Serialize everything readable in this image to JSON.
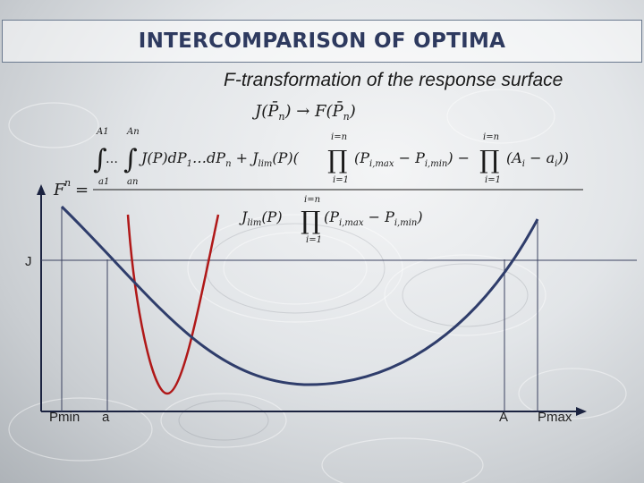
{
  "slide": {
    "title": "INTERCOMPARISON OF OPTIMA",
    "subtitle": "F-transformation of the response surface"
  },
  "axes": {
    "y_label": "J",
    "x_labels": [
      "Pmin",
      "a",
      "A",
      "Pmax"
    ]
  },
  "colors": {
    "blue_curve": "#2f3d6b",
    "red_curve": "#b01818",
    "axis": "#1b2340",
    "guide_lines": "#3b4260",
    "title_text": "#2e3a5f"
  },
  "formulas": {
    "transform": "J(P̄n) → F(P̄n)",
    "F_lhs": "F",
    "F_lhs_sup": "n",
    "numerator": "∫...∫ J(P)dP1...dPn + Jlim(P)(∏ (Pi,max − Pi,min) − ∏ (Ai − ai))",
    "denominator": "Jlim(P) ∏ (Pi,max − Pi,min)",
    "prod_top": "i=n",
    "prod_bottom": "i=1",
    "int_top_1": "A1",
    "int_top_n": "An",
    "int_bottom_1": "a1",
    "int_bottom_n": "an"
  }
}
